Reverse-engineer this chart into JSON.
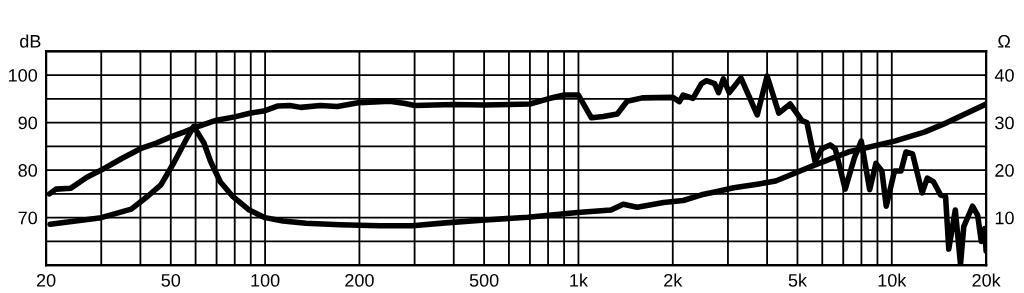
{
  "chart_data": {
    "type": "line",
    "ylabel": "dB",
    "y2label": "Ω",
    "log": "x",
    "grid": true,
    "marker": "none",
    "line_style": "solid",
    "xlim": [
      20,
      20000
    ],
    "xticks": [
      20,
      {
        "value": 30,
        "label": null
      },
      {
        "value": 40,
        "label": null
      },
      50,
      {
        "value": 60,
        "label": null
      },
      {
        "value": 70,
        "label": null
      },
      {
        "value": 80,
        "label": null
      },
      {
        "value": 90,
        "label": null
      },
      100,
      200,
      {
        "value": 300,
        "label": null
      },
      {
        "value": 400,
        "label": null
      },
      500,
      {
        "value": 600,
        "label": null
      },
      {
        "value": 700,
        "label": null
      },
      {
        "value": 800,
        "label": null
      },
      {
        "value": 900,
        "label": null
      },
      {
        "value": 1000,
        "label": "1k"
      },
      {
        "value": 2000,
        "label": "2k"
      },
      {
        "value": 3000,
        "label": null
      },
      {
        "value": 4000,
        "label": null
      },
      {
        "value": 5000,
        "label": "5k"
      },
      {
        "value": 6000,
        "label": null
      },
      {
        "value": 7000,
        "label": null
      },
      {
        "value": 8000,
        "label": null
      },
      {
        "value": 9000,
        "label": null
      },
      {
        "value": 10000,
        "label": "10k"
      },
      {
        "value": 20000,
        "label": "20k"
      }
    ],
    "ylim": [
      60,
      105
    ],
    "yticks": [
      {
        "value": 60,
        "label": null
      },
      {
        "value": 65,
        "label": null
      },
      70,
      {
        "value": 75,
        "label": null
      },
      80,
      {
        "value": 85,
        "label": null
      },
      90,
      {
        "value": 95,
        "label": null
      },
      100,
      {
        "value": 105,
        "label": null
      }
    ],
    "y2lim": [
      0,
      45
    ],
    "y2ticks": [
      10,
      20,
      30,
      40
    ],
    "series": [
      {
        "color": "#000000",
        "x": [
          20.5,
          21.5,
          24,
          27,
          30,
          35,
          40,
          45,
          50,
          55,
          60,
          70,
          80,
          90,
          100,
          110,
          120,
          130,
          150,
          170,
          200,
          250,
          280,
          300,
          400,
          500,
          700,
          800,
          900,
          1000,
          1100,
          1200,
          1330,
          1430,
          1600,
          2000,
          2100,
          2160,
          2320,
          2470,
          2560,
          2720,
          2800,
          2900,
          3030,
          3300,
          3720,
          4000,
          4360,
          4740,
          5170,
          5360,
          5690,
          5980,
          6360,
          6600,
          7100,
          7600,
          7990,
          8500,
          8900,
          9300,
          9600,
          10200,
          10700,
          11100,
          11650,
          12500,
          12980,
          13600,
          14300,
          14850,
          15200,
          15950,
          16570,
          16970,
          18100,
          18800,
          19300,
          19800,
          20000
        ],
        "values": [
          75,
          76,
          76.2,
          78.5,
          80,
          82.5,
          84.5,
          85.7,
          87,
          88,
          89,
          90.5,
          91.2,
          92,
          92.5,
          93.5,
          93.6,
          93.2,
          93.6,
          93.4,
          94.2,
          94.5,
          94,
          93.6,
          93.8,
          93.7,
          93.9,
          95,
          95.8,
          95.8,
          91,
          91.3,
          91.8,
          94.5,
          95.2,
          95.3,
          94.4,
          95.8,
          95.1,
          98.2,
          98.8,
          98.2,
          96.3,
          99.2,
          96.3,
          99.4,
          91.6,
          99.8,
          92,
          93.9,
          90.4,
          90,
          81.8,
          84.5,
          85.3,
          84.5,
          76,
          82.6,
          86.1,
          75.9,
          81.4,
          79.8,
          72.4,
          79.8,
          79.8,
          83.8,
          83.4,
          75.2,
          78.3,
          77.5,
          74.8,
          74.4,
          63.4,
          71.6,
          60.2,
          68.1,
          72.4,
          70.5,
          65,
          67.7,
          63
        ]
      },
      {
        "color": "#000000",
        "axis": "y2",
        "x": [
          20.6,
          30,
          37.4,
          42.2,
          46.5,
          51.2,
          56.5,
          59.2,
          63.8,
          67,
          72,
          79,
          89,
          100,
          114,
          135,
          173,
          232,
          295,
          376,
          504,
          690,
          993,
          1270,
          1390,
          1540,
          1870,
          2160,
          2470,
          2770,
          3130,
          3770,
          4260,
          5690,
          7260,
          10200,
          12700,
          15000,
          20000
        ],
        "values": [
          8.6,
          10,
          11.8,
          14.5,
          16.9,
          21.6,
          26.9,
          29.2,
          25.7,
          21.8,
          17.5,
          14.4,
          11.6,
          10,
          9.3,
          8.8,
          8.5,
          8.3,
          8.3,
          8.9,
          9.5,
          10.1,
          11.1,
          11.6,
          12.8,
          12.2,
          13.2,
          13.6,
          14.8,
          15.5,
          16.3,
          17.1,
          17.7,
          21.1,
          23.8,
          26.1,
          28,
          30,
          33.9
        ]
      }
    ]
  }
}
